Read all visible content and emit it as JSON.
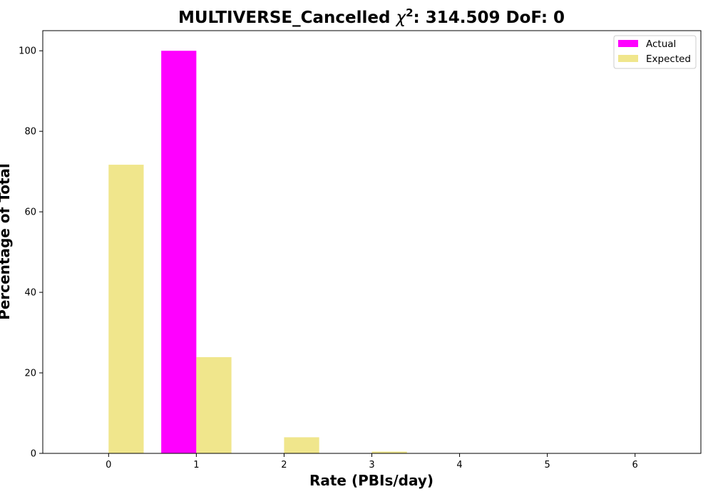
{
  "chart_data": {
    "type": "bar",
    "title_prefix": "MULTIVERSE_Cancelled ",
    "title_symbol": "χ",
    "title_superscript": "2",
    "title_suffix": ": 314.509 DoF: 0",
    "xlabel": "Rate (PBIs/day)",
    "ylabel": "Percentage of Total",
    "categories": [
      0,
      1,
      2,
      3,
      4,
      5,
      6
    ],
    "xlim": [
      -0.75,
      6.75
    ],
    "ylim": [
      0,
      105
    ],
    "yticks": [
      0,
      20,
      40,
      60,
      80,
      100
    ],
    "grid": false,
    "legend_position": "top-right",
    "series": [
      {
        "name": "Actual",
        "color": "#ff00ff",
        "offset": -0.2,
        "values": [
          0,
          100,
          0,
          0,
          0,
          0,
          0
        ]
      },
      {
        "name": "Expected",
        "color": "#f0e68c",
        "offset": 0.2,
        "values": [
          71.7,
          23.9,
          4.0,
          0.45,
          0.04,
          0,
          0
        ]
      }
    ]
  }
}
